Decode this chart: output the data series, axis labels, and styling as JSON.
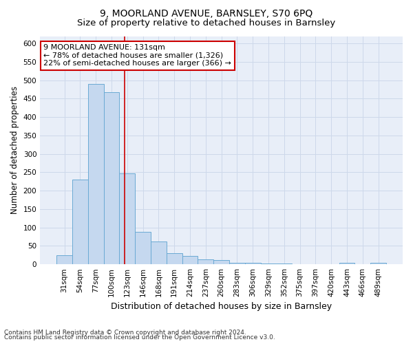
{
  "title1": "9, MOORLAND AVENUE, BARNSLEY, S70 6PQ",
  "title2": "Size of property relative to detached houses in Barnsley",
  "xlabel": "Distribution of detached houses by size in Barnsley",
  "ylabel": "Number of detached properties",
  "footer1": "Contains HM Land Registry data © Crown copyright and database right 2024.",
  "footer2": "Contains public sector information licensed under the Open Government Licence v3.0.",
  "categories": [
    "31sqm",
    "54sqm",
    "77sqm",
    "100sqm",
    "123sqm",
    "146sqm",
    "168sqm",
    "191sqm",
    "214sqm",
    "237sqm",
    "260sqm",
    "283sqm",
    "306sqm",
    "329sqm",
    "352sqm",
    "375sqm",
    "397sqm",
    "420sqm",
    "443sqm",
    "466sqm",
    "489sqm"
  ],
  "values": [
    25,
    230,
    490,
    468,
    248,
    88,
    62,
    30,
    22,
    13,
    11,
    5,
    4,
    3,
    2,
    1,
    1,
    1,
    5,
    1,
    4
  ],
  "bar_color": "#c5d8ef",
  "bar_edge_color": "#6aaad4",
  "annotation_text1": "9 MOORLAND AVENUE: 131sqm",
  "annotation_text2": "← 78% of detached houses are smaller (1,326)",
  "annotation_text3": "22% of semi-detached houses are larger (366) →",
  "annotation_box_color": "#ffffff",
  "annotation_border_color": "#cc0000",
  "red_line_x": 3.82,
  "ylim": [
    0,
    620
  ],
  "yticks": [
    0,
    50,
    100,
    150,
    200,
    250,
    300,
    350,
    400,
    450,
    500,
    550,
    600
  ],
  "grid_color": "#cdd8ea",
  "background_color": "#e8eef8",
  "title1_fontsize": 10,
  "title2_fontsize": 9.5,
  "xlabel_fontsize": 9,
  "ylabel_fontsize": 8.5,
  "tick_fontsize": 7.5,
  "footer_fontsize": 6.5
}
